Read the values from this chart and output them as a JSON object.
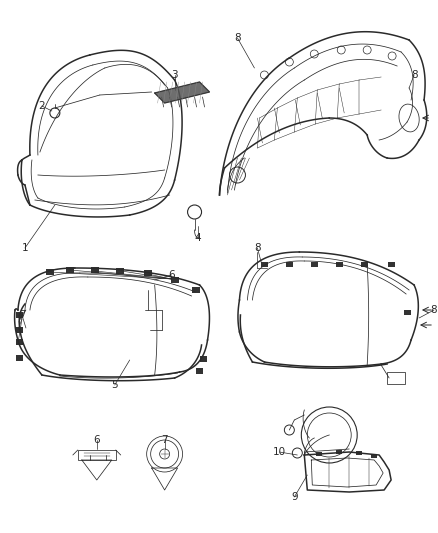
{
  "bg_color": "#ffffff",
  "line_color": "#2a2a2a",
  "label_color": "#2a2a2a",
  "figsize": [
    4.38,
    5.33
  ],
  "dpi": 100,
  "lw_main": 1.1,
  "lw_thin": 0.55,
  "lw_xtra": 0.35,
  "label_fs": 7.5
}
